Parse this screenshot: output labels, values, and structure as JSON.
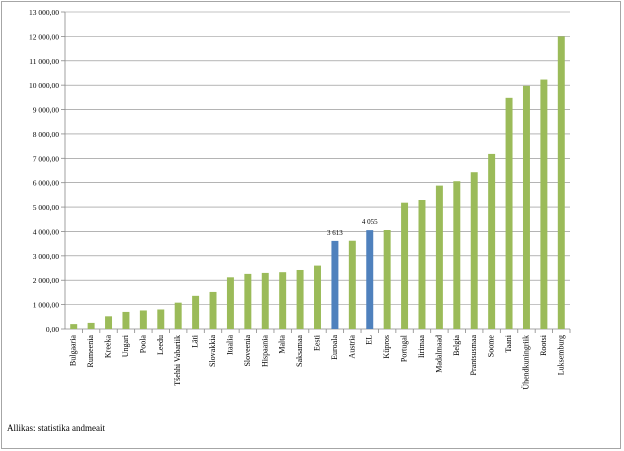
{
  "chart_data": {
    "type": "bar",
    "title": "",
    "xlabel": "",
    "ylabel": "",
    "ylim": [
      0,
      13000
    ],
    "ytick_step": 1000,
    "ytick_labels": [
      "0,00",
      "1 000,00",
      "2 000,00",
      "3 000,00",
      "4 000,00",
      "5 000,00",
      "6 000,00",
      "7 000,00",
      "8 000,00",
      "9 000,00",
      "10 000,00",
      "11 000,00",
      "12 000,00",
      "13 000,00"
    ],
    "grid": true,
    "legend": "none",
    "categories": [
      "Bulgaaria",
      "Rumeenia",
      "Kreeka",
      "Ungari",
      "Poola",
      "Leedu",
      "Tšehhi Vabariik",
      "Läti",
      "Slovakkia",
      "Itaalia",
      "Sloveenia",
      "Hispaania",
      "Malta",
      "Saksamaa",
      "Eesti",
      "Euroala",
      "Austria",
      "EL",
      "Küpros",
      "Portugal",
      "Iirimaa",
      "Madalmaad",
      "Belgia",
      "Prantsusmaa",
      "Soome",
      "Taani",
      "Ühendkuningriik",
      "Rootsi",
      "Luksemburg"
    ],
    "values": [
      200,
      250,
      520,
      700,
      760,
      800,
      1080,
      1360,
      1520,
      2120,
      2260,
      2300,
      2330,
      2420,
      2600,
      3613,
      3620,
      4055,
      4060,
      5180,
      5290,
      5880,
      6060,
      6430,
      7180,
      9480,
      9970,
      10230,
      12000
    ],
    "highlight": [
      "Euroala",
      "EL"
    ],
    "data_labels": {
      "Euroala": "3 613",
      "EL": "4 055"
    },
    "colors": {
      "bar": "#9BBB59",
      "highlight": "#4F81BD",
      "grid": "#888888"
    }
  },
  "source_text": "Allikas: statistika andmeait"
}
